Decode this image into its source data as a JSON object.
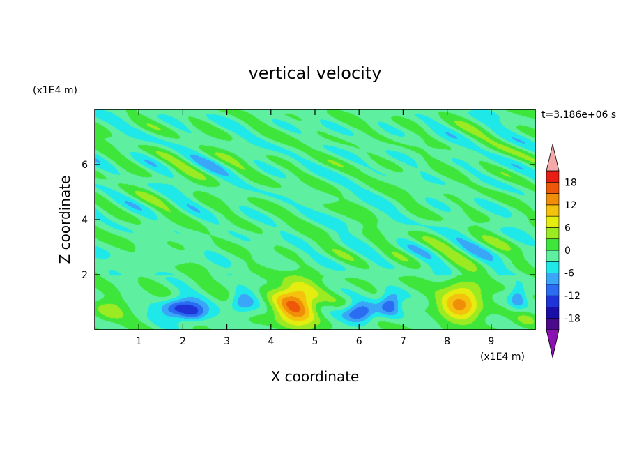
{
  "chart_data": {
    "type": "heatmap",
    "title": "vertical velocity",
    "xlabel": "X coordinate",
    "ylabel": "Z coordinate",
    "x_unit": "(x1E4 m)",
    "y_unit": "(x1E4 m)",
    "time_label": "t=3.186e+06 s",
    "xlim": [
      0,
      10
    ],
    "ylim": [
      0,
      8
    ],
    "x_ticks": [
      1,
      2,
      3,
      4,
      5,
      6,
      7,
      8,
      9
    ],
    "y_ticks": [
      2,
      4,
      6
    ],
    "colorbar": {
      "levels": [
        -21,
        -18,
        -15,
        -12,
        -9,
        -6,
        -3,
        0,
        3,
        6,
        9,
        12,
        15,
        18,
        21
      ],
      "tick_values": [
        -18,
        -12,
        -6,
        0,
        6,
        12,
        18
      ],
      "tick_labels": [
        "-18",
        "-12",
        "-6",
        "0",
        "6",
        "12",
        "18"
      ],
      "colors": [
        "#4b0a8c",
        "#1a0ea8",
        "#1e34d8",
        "#2a6cf2",
        "#3aa6f8",
        "#1fe8e8",
        "#5ef0a0",
        "#3ee63c",
        "#9cea22",
        "#e4ec10",
        "#f4c20c",
        "#f08e0a",
        "#ee5808",
        "#e81e14"
      ],
      "under_color": "#8a12b0",
      "over_color": "#f4a8a8"
    },
    "features": [
      {
        "x": 0.3,
        "z": 0.7,
        "value": 5,
        "wx": 0.35,
        "wz": 0.45
      },
      {
        "x": 1.9,
        "z": 0.8,
        "value": -14,
        "wx": 0.4,
        "wz": 0.35
      },
      {
        "x": 2.25,
        "z": 0.6,
        "value": -9,
        "wx": 0.3,
        "wz": 0.3
      },
      {
        "x": 3.35,
        "z": 1.0,
        "value": -8,
        "wx": 0.3,
        "wz": 0.4
      },
      {
        "x": 4.55,
        "z": 0.95,
        "value": 16,
        "wx": 0.5,
        "wz": 0.8
      },
      {
        "x": 6.0,
        "z": 0.65,
        "value": -13,
        "wx": 0.35,
        "wz": 0.35
      },
      {
        "x": 6.7,
        "z": 0.95,
        "value": -11,
        "wx": 0.25,
        "wz": 0.4
      },
      {
        "x": 8.3,
        "z": 1.0,
        "value": 14,
        "wx": 0.45,
        "wz": 0.7
      },
      {
        "x": 9.6,
        "z": 1.2,
        "value": -7,
        "wx": 0.2,
        "wz": 0.4
      },
      {
        "x": 9.8,
        "z": 0.4,
        "value": 4,
        "wx": 0.3,
        "wz": 0.3
      }
    ]
  }
}
